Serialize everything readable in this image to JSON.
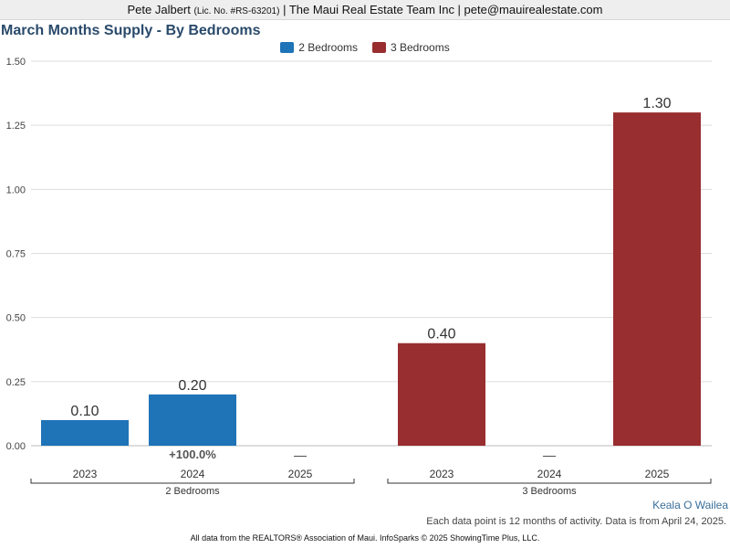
{
  "header": {
    "agent": "Pete Jalbert",
    "license": "(Lic. No. #RS-63201)",
    "rest": "| The Maui Real Estate Team Inc | pete@mauirealestate.com"
  },
  "area_name": "Keala O Wailea",
  "note": "Each data point is 12 months of activity. Data is from April 24, 2025.",
  "footer": "All data from the REALTORS® Association of Maui. InfoSparks © 2025 ShowingTime Plus, LLC.",
  "chart_data": {
    "type": "bar",
    "title": "March Months Supply - By Bedrooms",
    "ylim": [
      0,
      1.5
    ],
    "yticks": [
      "0.00",
      "0.25",
      "0.50",
      "0.75",
      "1.00",
      "1.25",
      "1.50"
    ],
    "grid": true,
    "legend_position": "top-center",
    "groups": [
      {
        "name": "2 Bedrooms",
        "color": "#1f73b7",
        "categories": [
          "2023",
          "2024",
          "2025"
        ],
        "values": [
          0.1,
          0.2,
          null
        ],
        "value_labels": [
          "0.10",
          "0.20",
          "—"
        ],
        "change_labels": [
          "",
          "+100.0%",
          ""
        ]
      },
      {
        "name": "3 Bedrooms",
        "color": "#982e2f",
        "categories": [
          "2023",
          "2024",
          "2025"
        ],
        "values": [
          0.4,
          null,
          1.3
        ],
        "value_labels": [
          "0.40",
          "—",
          "1.30"
        ],
        "change_labels": [
          "",
          "",
          ""
        ]
      }
    ]
  }
}
